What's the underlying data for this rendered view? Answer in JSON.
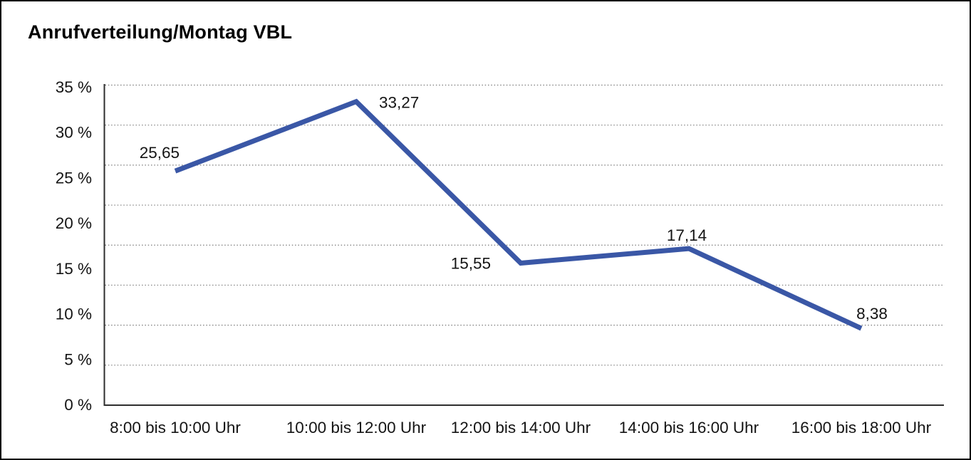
{
  "chart_data": {
    "type": "line",
    "title": "Anrufverteilung/Montag VBL",
    "categories": [
      "8:00 bis 10:00 Uhr",
      "10:00 bis 12:00 Uhr",
      "12:00 bis 14:00 Uhr",
      "14:00 bis 16:00 Uhr",
      "16:00 bis 18:00 Uhr"
    ],
    "values": [
      25.65,
      33.27,
      15.55,
      17.14,
      8.38
    ],
    "value_labels": [
      "25,65",
      "33,27",
      "15,55",
      "17,14",
      "8,38"
    ],
    "y_tick_labels": [
      "35 %",
      "30 %",
      "25 %",
      "20 %",
      "15 %",
      "10 %",
      "5 %",
      "0 %"
    ],
    "ylim": [
      0,
      35
    ],
    "y_tick_step": 5,
    "xlabel": "",
    "ylabel": "",
    "legend_position": "none",
    "grid": "horizontal-dotted",
    "line_color": "#3A57A6",
    "grid_color": "#7A7A7A",
    "axis_color": "#2E2E2E",
    "text_color": "#141414",
    "background": "#FFFFFF",
    "border_color": "#000000"
  }
}
